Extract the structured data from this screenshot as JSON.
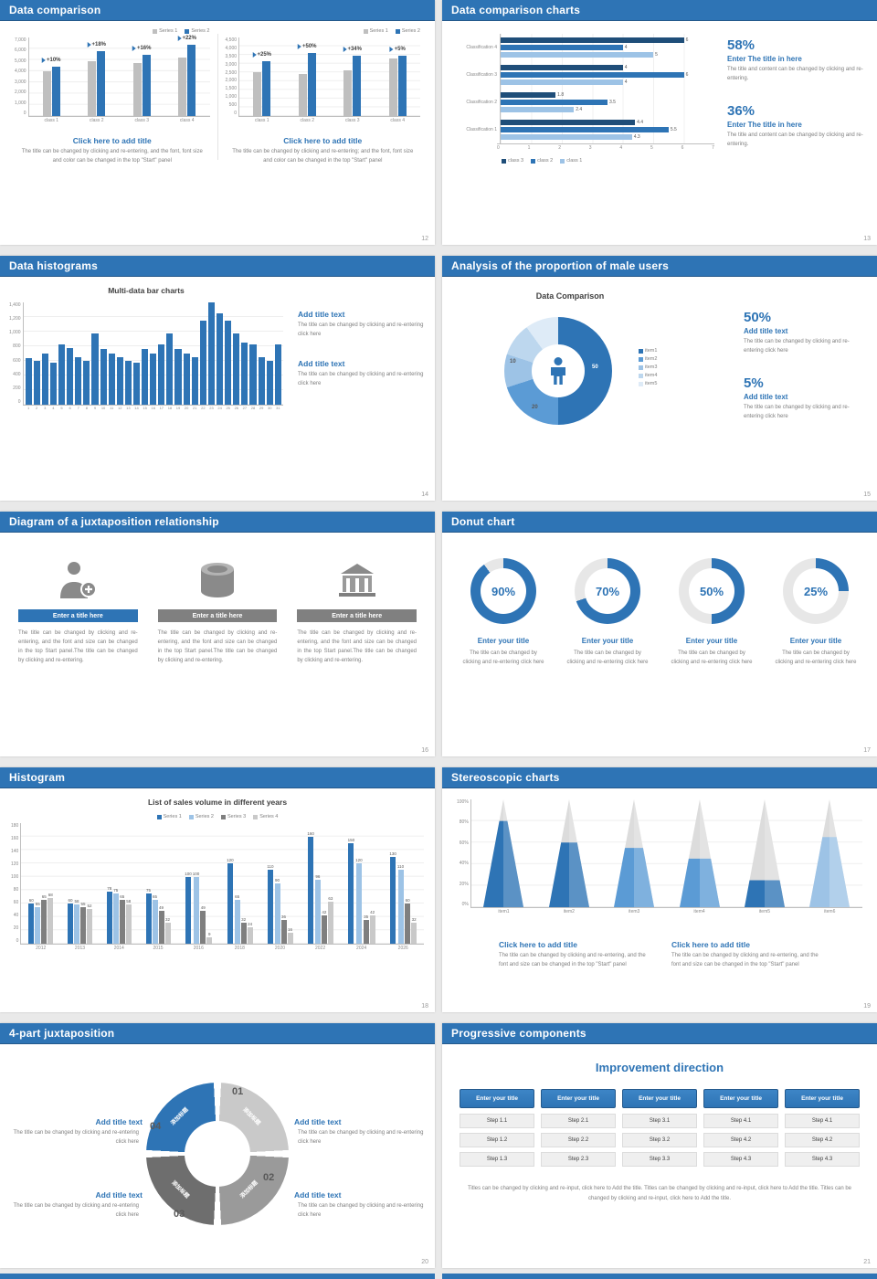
{
  "colors": {
    "accent": "#2e74b5",
    "accentLight": "#5b9bd5",
    "blue3": "#9dc3e6",
    "blue4": "#bdd7ee",
    "blue5": "#deebf7",
    "navy": "#1f4e79",
    "gray": "#a6a6a6",
    "grayLight": "#c9c9c9",
    "track": "#e7e7e7"
  },
  "slides": {
    "s12": {
      "title": "Data comparison",
      "page": "12",
      "legend": [
        "Series 1",
        "Series 2"
      ],
      "chart_data": [
        {
          "type": "bar",
          "categories": [
            "class 1",
            "class 2",
            "class 3",
            "class 4"
          ],
          "series": [
            {
              "name": "Series 1",
              "values": [
                4000,
                4900,
                4700,
                5200
              ]
            },
            {
              "name": "Series 2",
              "values": [
                4400,
                5800,
                5450,
                6340
              ]
            }
          ],
          "growth_labels": [
            "+10%",
            "+18%",
            "+16%",
            "+22%"
          ],
          "yticks": [
            "7,000",
            "6,000",
            "5,000",
            "4,000",
            "3,000",
            "2,000",
            "1,000",
            "0"
          ],
          "ymax": 7000
        },
        {
          "type": "bar",
          "categories": [
            "class 1",
            "class 2",
            "class 3",
            "class 4"
          ],
          "series": [
            {
              "name": "Series 1",
              "values": [
                2500,
                2400,
                2600,
                3300
              ]
            },
            {
              "name": "Series 2",
              "values": [
                3125,
                3600,
                3480,
                3465
              ]
            }
          ],
          "growth_labels": [
            "+25%",
            "+50%",
            "+34%",
            "+5%"
          ],
          "yticks": [
            "4,500",
            "4,000",
            "3,500",
            "3,000",
            "2,500",
            "2,000",
            "1,500",
            "1,000",
            "500",
            "0"
          ],
          "ymax": 4500
        }
      ],
      "blocks": [
        {
          "title": "Click here to add title",
          "body": "The title can be changed by clicking and re-entering, and the font, font size and color can be changed in the top \"Start\" panel"
        },
        {
          "title": "Click here to add title",
          "body": "The title can be changed by clicking and re-entering; and the font, font size and color can be changed in the top \"Start\" panel"
        }
      ]
    },
    "s13": {
      "title": "Data comparison charts",
      "page": "13",
      "chart_data": {
        "type": "bar",
        "orientation": "horizontal",
        "categories": [
          "Classification 4",
          "Classification 3",
          "Classification 2",
          "Classification 1"
        ],
        "series": [
          {
            "name": "class 3",
            "values": [
              6,
              4,
              1.8,
              4.4
            ]
          },
          {
            "name": "class 2",
            "values": [
              4,
              6,
              3.5,
              5.5
            ]
          },
          {
            "name": "class 1",
            "values": [
              5,
              4,
              2.4,
              4.3
            ]
          }
        ],
        "xticks": [
          "0",
          "1",
          "2",
          "3",
          "4",
          "5",
          "6",
          "7"
        ],
        "xmax": 7
      },
      "legend": [
        "class 3",
        "class 2",
        "class 1"
      ],
      "stats": [
        {
          "value": "58%",
          "title": "Enter The title in here",
          "body": "The title and content can be changed by clicking and re-entering."
        },
        {
          "value": "36%",
          "title": "Enter The title in here",
          "body": "The title and content can be changed by clicking and re-entering."
        }
      ]
    },
    "s14": {
      "title": "Data histograms",
      "page": "14",
      "chart_data": {
        "type": "bar",
        "title": "Multi-data bar charts",
        "x": [
          1,
          2,
          3,
          4,
          5,
          6,
          7,
          8,
          9,
          10,
          11,
          12,
          13,
          14,
          15,
          16,
          17,
          18,
          19,
          20,
          21,
          22,
          23,
          24,
          25,
          26,
          27,
          28,
          29,
          30,
          31
        ],
        "values": [
          640,
          600,
          700,
          580,
          820,
          780,
          650,
          600,
          980,
          760,
          700,
          650,
          600,
          580,
          760,
          700,
          820,
          980,
          760,
          700,
          650,
          1150,
          1400,
          1250,
          1150,
          980,
          850,
          820,
          650,
          600,
          820
        ],
        "yticks": [
          "1,400",
          "1,200",
          "1,000",
          "800",
          "600",
          "400",
          "200",
          "0"
        ],
        "ymax": 1400
      },
      "blocks": [
        {
          "title": "Add title text",
          "body": "The title can be changed by clicking and re-entering click here"
        },
        {
          "title": "Add title text",
          "body": "The title can be changed by clicking and re-entering click here"
        }
      ]
    },
    "s15": {
      "title": "Analysis of the proportion of male users",
      "page": "15",
      "chart_title": "Data Comparison",
      "chart_data": {
        "type": "pie",
        "labels": [
          "item1",
          "item2",
          "item3",
          "item4",
          "item5"
        ],
        "values": [
          50,
          20,
          10,
          10,
          10
        ]
      },
      "callouts": [
        {
          "text": "50"
        },
        {
          "text": "10"
        },
        {
          "text": "20"
        }
      ],
      "stats": [
        {
          "value": "50%",
          "title": "Add title text",
          "body": "The title can be changed by clicking and re-entering click here"
        },
        {
          "value": "5%",
          "title": "Add title text",
          "body": "The title can be changed by clicking and re-entering click here"
        }
      ]
    },
    "s16": {
      "title": "Diagram of a juxtaposition relationship",
      "page": "16",
      "columns": [
        {
          "icon": "nurse-icon",
          "bar": "Enter a title here",
          "body": "The title can be changed by clicking and re-entering, and the font and size can be changed in the top Start panel.The title can be changed by clicking and re-entering."
        },
        {
          "icon": "database-icon",
          "bar": "Enter a title here",
          "body": "The title can be changed by clicking and re-entering, and the font and size can be changed in the top Start panel.The title can be changed by clicking and re-entering."
        },
        {
          "icon": "building-icon",
          "bar": "Enter a title here",
          "body": "The title can be changed by clicking and re-entering, and the font and size can be changed in the top Start panel.The title can be changed by clicking and re-entering."
        }
      ]
    },
    "s17": {
      "title": "Donut chart",
      "page": "17",
      "chart_data": {
        "type": "pie",
        "gauges": [
          90,
          70,
          50,
          25
        ]
      },
      "items": [
        {
          "value": "90%",
          "title": "Enter your title",
          "body": "The title can be changed by clicking and re-entering click here"
        },
        {
          "value": "70%",
          "title": "Enter your title",
          "body": "The title can be changed by clicking and re-entering click here"
        },
        {
          "value": "50%",
          "title": "Enter your title",
          "body": "The title can be changed by clicking and re-entering click here"
        },
        {
          "value": "25%",
          "title": "Enter your title",
          "body": "The title can be changed by clicking and re-entering click here"
        }
      ]
    },
    "s18": {
      "title": "Histogram",
      "page": "18",
      "chart_data": {
        "type": "bar",
        "title": "List of sales volume in different years",
        "categories": [
          "2012",
          "2013",
          "2014",
          "2015",
          "2016",
          "2018",
          "2020",
          "2022",
          "2024",
          "2026"
        ],
        "series": [
          {
            "name": "Series 1",
            "values": [
              60,
              60,
              78,
              75,
              100,
              120,
              110,
              160,
              150,
              130
            ]
          },
          {
            "name": "Series 2",
            "values": [
              55,
              58,
              75,
              65,
              100,
              65,
              90,
              96,
              120,
              110
            ]
          },
          {
            "name": "Series 3",
            "values": [
              65,
              55,
              65,
              49,
              49,
              32,
              36,
              42,
              35,
              60
            ]
          },
          {
            "name": "Series 4",
            "values": [
              68,
              52,
              58,
              32,
              9,
              24,
              16,
              63,
              42,
              32
            ]
          }
        ],
        "yticks": [
          "180",
          "160",
          "140",
          "120",
          "100",
          "80",
          "60",
          "40",
          "20",
          "0"
        ],
        "ymax": 180
      }
    },
    "s19": {
      "title": "Stereoscopic charts",
      "page": "19",
      "chart_data": {
        "type": "bar",
        "variant": "cone",
        "categories": [
          "item1",
          "item2",
          "item3",
          "item4",
          "item5",
          "item6"
        ],
        "values": [
          80,
          60,
          55,
          45,
          25,
          65
        ],
        "yticks": [
          "100%",
          "80%",
          "60%",
          "40%",
          "20%",
          "0%"
        ]
      },
      "blocks": [
        {
          "title": "Click here to add title",
          "body": "The title can be changed by clicking and re-entering, and the font and size can be changed in the top \"Start\" panel"
        },
        {
          "title": "Click here to add title",
          "body": "The title can be changed by clicking and re-entering, and the font and size can be changed in the top \"Start\" panel"
        }
      ]
    },
    "s20": {
      "title": "4-part juxtaposition",
      "page": "20",
      "segments": [
        {
          "num": "01",
          "label": "添加标题"
        },
        {
          "num": "02",
          "label": "添加标题"
        },
        {
          "num": "03",
          "label": "添加标题"
        },
        {
          "num": "04",
          "label": "添加标题"
        }
      ],
      "blocks": [
        {
          "title": "Add title text",
          "body": "The title can be changed by clicking and re-entering click here"
        },
        {
          "title": "Add title text",
          "body": "The title can be changed by clicking and re-entering click here"
        },
        {
          "title": "Add title text",
          "body": "The title can be changed by clicking and re-entering click here"
        },
        {
          "title": "Add title text",
          "body": "The title can be changed by clicking and re-entering click here"
        }
      ]
    },
    "s21": {
      "title": "Progressive components",
      "page": "21",
      "heading": "Improvement direction",
      "columns": [
        {
          "title": "Enter your title",
          "steps": [
            "Step 1.1",
            "Step 1.2",
            "Step 1.3"
          ]
        },
        {
          "title": "Enter your title",
          "steps": [
            "Step 2.1",
            "Step 2.2",
            "Step 2.3"
          ]
        },
        {
          "title": "Enter your title",
          "steps": [
            "Step 3.1",
            "Step 3.2",
            "Step 3.3"
          ]
        },
        {
          "title": "Enter your title",
          "steps": [
            "Step 4.1",
            "Step 4.2",
            "Step 4.3"
          ]
        },
        {
          "title": "Enter your title",
          "steps": [
            "Step 4.1",
            "Step 4.2",
            "Step 4.3"
          ]
        }
      ],
      "footer": "Titles can be changed by clicking and re-input, click here to Add the title. Titles can be changed by clicking and re-input, click here to Add the title. Titles can be changed by clicking and re-input, click here to Add the title."
    }
  }
}
